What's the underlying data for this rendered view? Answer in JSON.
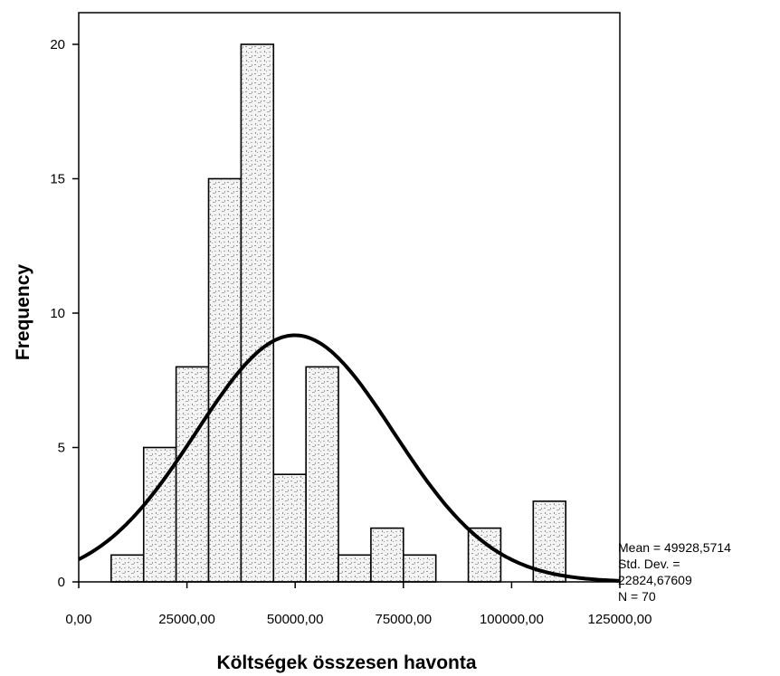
{
  "chart_data": {
    "type": "bar",
    "subtype": "histogram",
    "title": "",
    "xlabel": "Költségek összesen havonta",
    "ylabel": "Frequency",
    "xlim": [
      0,
      125000
    ],
    "ylim": [
      0,
      21
    ],
    "x_ticks": [
      0,
      25000,
      50000,
      75000,
      100000,
      125000
    ],
    "x_tick_labels": [
      "0,00",
      "25000,00",
      "50000,00",
      "75000,00",
      "100000,00",
      "125000,00"
    ],
    "y_ticks": [
      0,
      5,
      10,
      15,
      20
    ],
    "y_tick_labels": [
      "0",
      "5",
      "10",
      "15",
      "20"
    ],
    "bin_width": 7500,
    "bins": [
      {
        "start": 7500,
        "end": 15000,
        "count": 1
      },
      {
        "start": 15000,
        "end": 22500,
        "count": 5
      },
      {
        "start": 22500,
        "end": 30000,
        "count": 8
      },
      {
        "start": 30000,
        "end": 37500,
        "count": 15
      },
      {
        "start": 37500,
        "end": 45000,
        "count": 20
      },
      {
        "start": 45000,
        "end": 52500,
        "count": 4
      },
      {
        "start": 52500,
        "end": 60000,
        "count": 8
      },
      {
        "start": 60000,
        "end": 67500,
        "count": 1
      },
      {
        "start": 67500,
        "end": 75000,
        "count": 2
      },
      {
        "start": 75000,
        "end": 82500,
        "count": 1
      },
      {
        "start": 90000,
        "end": 97500,
        "count": 2
      },
      {
        "start": 105000,
        "end": 112500,
        "count": 3
      }
    ],
    "normal_curve": {
      "mean": 49928.5714,
      "std_dev": 22824.67609,
      "n": 70
    },
    "grid": false,
    "stats_box": {
      "mean_label": "Mean = 49928,5714",
      "std_label": "Std. Dev. =",
      "std_value": "22824,67609",
      "n_label": "N = 70"
    }
  }
}
